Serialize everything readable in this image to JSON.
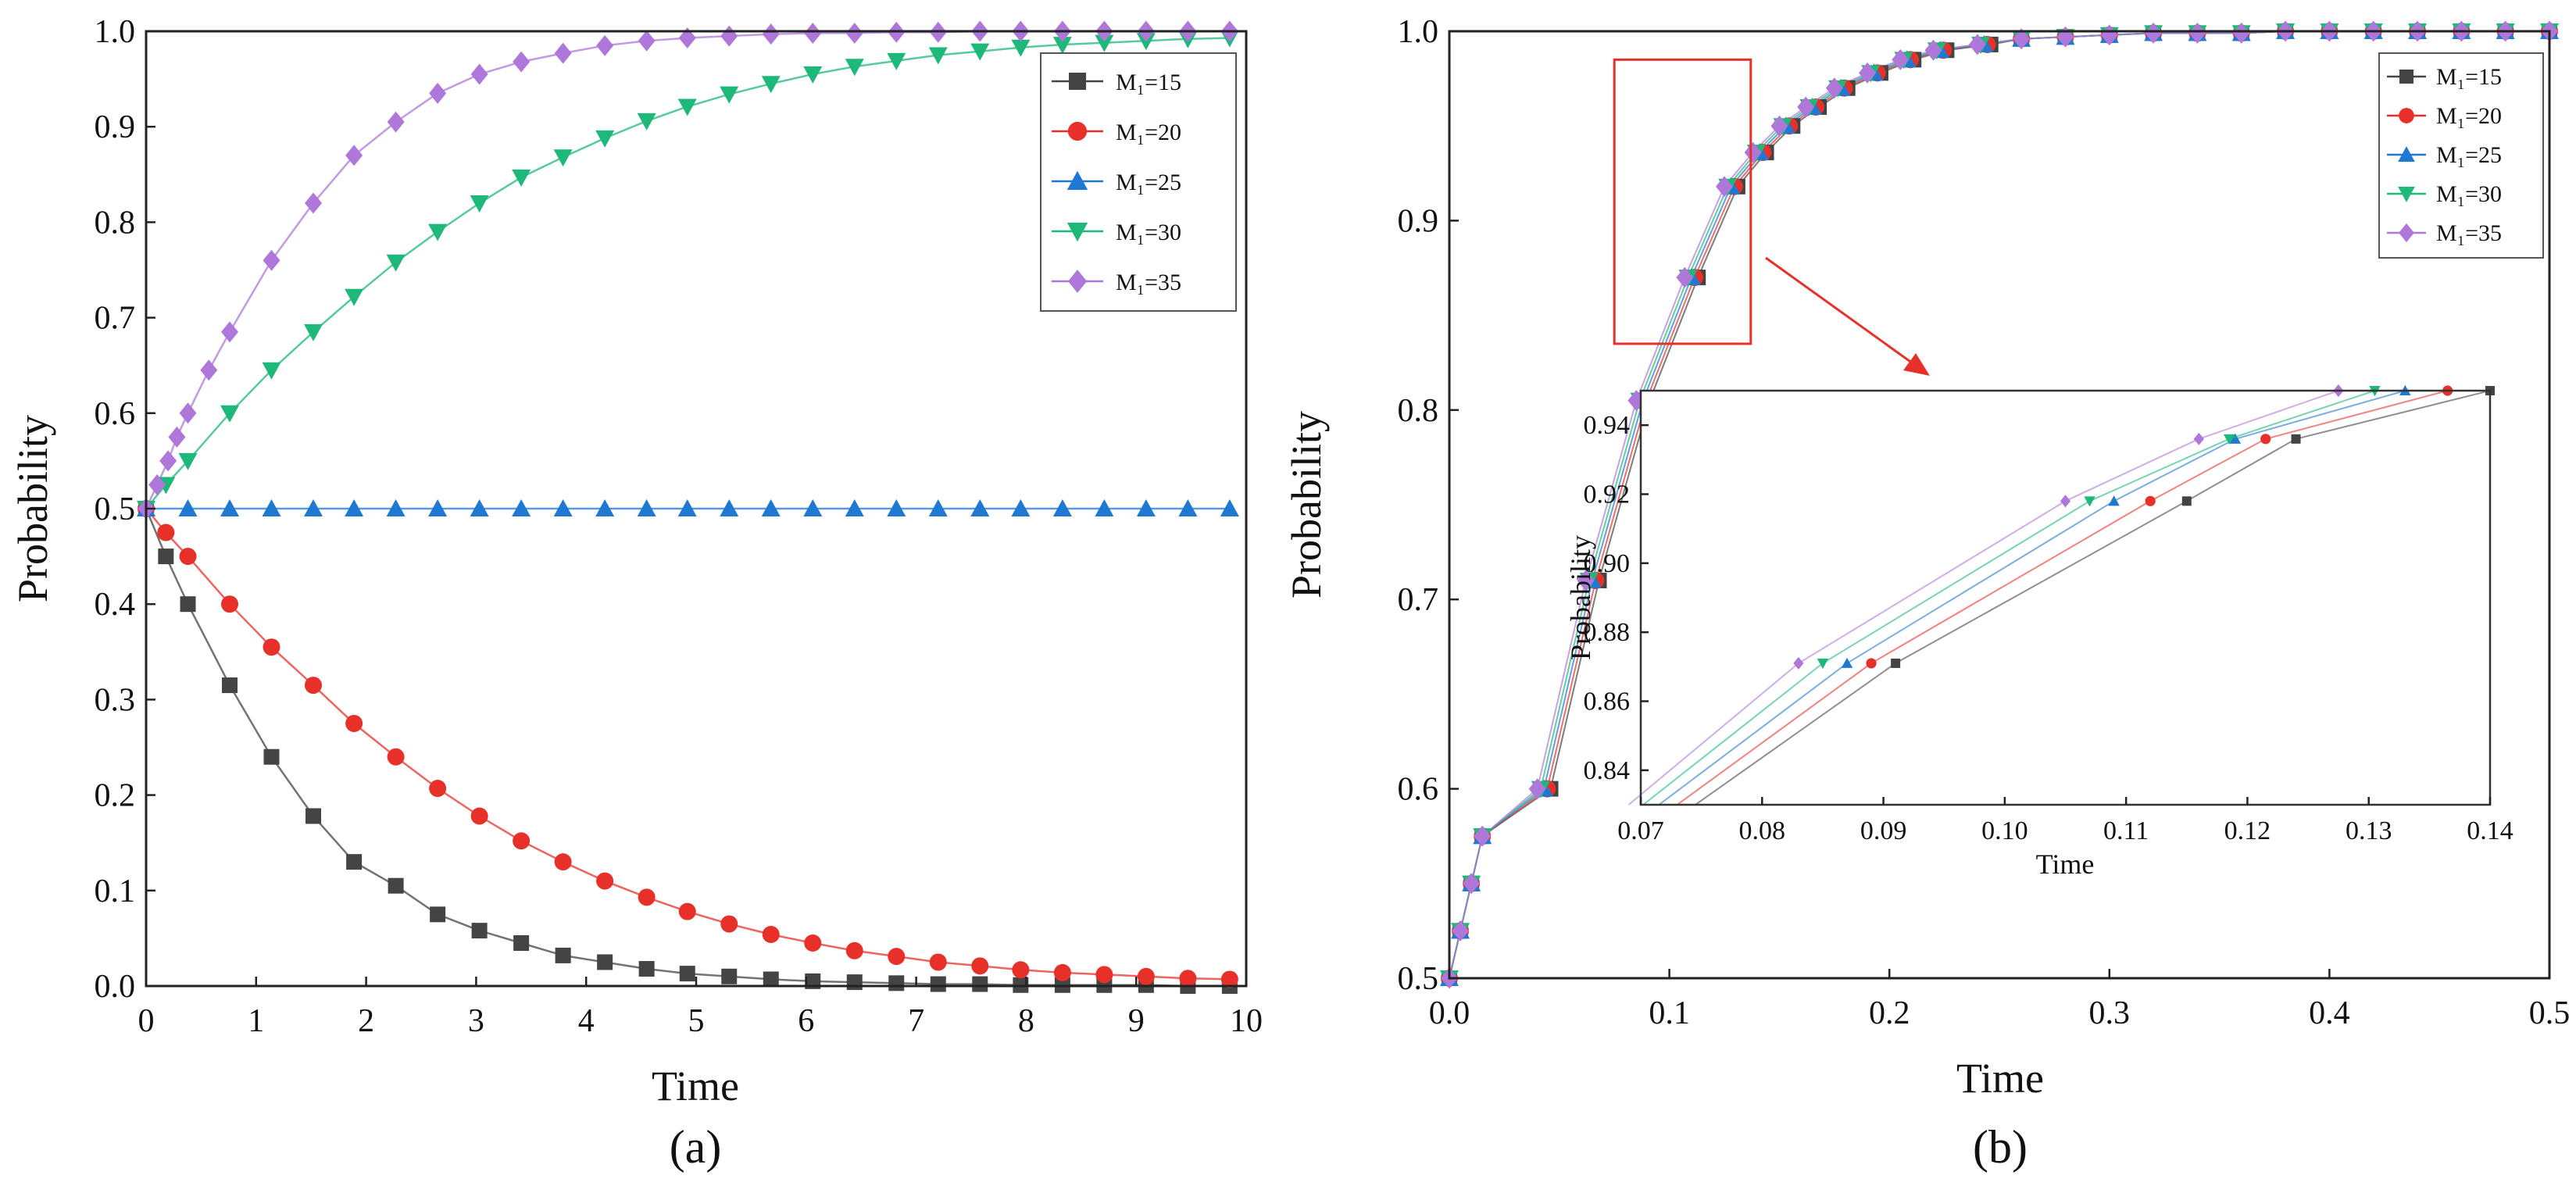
{
  "figure": {
    "colors": {
      "m15": "#444444",
      "m20": "#e8302a",
      "m25": "#1f78d1",
      "m30": "#1db87a",
      "m35": "#b077db",
      "callout": "#e8302a"
    },
    "legend": [
      "M₁=15",
      "M₁=20",
      "M₁=25",
      "M₁=30",
      "M₁=35"
    ]
  },
  "chart_data": [
    {
      "id": "a",
      "type": "line",
      "panel_label": "(a)",
      "xlabel": "Time",
      "ylabel": "Probability",
      "xlim": [
        0,
        10
      ],
      "ylim": [
        0,
        1
      ],
      "xticks": [
        "0",
        "1",
        "2",
        "3",
        "4",
        "5",
        "6",
        "7",
        "8",
        "9",
        "10"
      ],
      "yticks": [
        "0.0",
        "0.1",
        "0.2",
        "0.3",
        "0.4",
        "0.5",
        "0.6",
        "0.7",
        "0.8",
        "0.9",
        "1.0"
      ],
      "legend_position": "top-right",
      "series": [
        {
          "name": "M₁=15",
          "marker": "square",
          "color_key": "m15",
          "x": [
            0,
            0.18,
            0.38,
            0.76,
            1.14,
            1.52,
            1.89,
            2.27,
            2.65,
            3.03,
            3.41,
            3.79,
            4.17,
            4.55,
            4.92,
            5.3,
            5.68,
            6.06,
            6.44,
            6.82,
            7.2,
            7.58,
            7.95,
            8.33,
            8.71,
            9.09,
            9.47,
            9.85
          ],
          "y": [
            0.5,
            0.45,
            0.4,
            0.315,
            0.24,
            0.178,
            0.13,
            0.105,
            0.075,
            0.058,
            0.045,
            0.032,
            0.025,
            0.018,
            0.013,
            0.01,
            0.007,
            0.005,
            0.004,
            0.003,
            0.002,
            0.002,
            0.001,
            0.001,
            0.001,
            0.001,
            0.0,
            0.0
          ]
        },
        {
          "name": "M₁=20",
          "marker": "circle",
          "color_key": "m20",
          "x": [
            0,
            0.18,
            0.38,
            0.76,
            1.14,
            1.52,
            1.89,
            2.27,
            2.65,
            3.03,
            3.41,
            3.79,
            4.17,
            4.55,
            4.92,
            5.3,
            5.68,
            6.06,
            6.44,
            6.82,
            7.2,
            7.58,
            7.95,
            8.33,
            8.71,
            9.09,
            9.47,
            9.85
          ],
          "y": [
            0.5,
            0.475,
            0.45,
            0.4,
            0.355,
            0.315,
            0.275,
            0.24,
            0.207,
            0.178,
            0.152,
            0.13,
            0.11,
            0.093,
            0.078,
            0.065,
            0.054,
            0.045,
            0.037,
            0.031,
            0.025,
            0.021,
            0.017,
            0.014,
            0.012,
            0.01,
            0.008,
            0.007
          ]
        },
        {
          "name": "M₁=25",
          "marker": "triangle",
          "color_key": "m25",
          "x": [
            0,
            0.38,
            0.76,
            1.14,
            1.52,
            1.89,
            2.27,
            2.65,
            3.03,
            3.41,
            3.79,
            4.17,
            4.55,
            4.92,
            5.3,
            5.68,
            6.06,
            6.44,
            6.82,
            7.2,
            7.58,
            7.95,
            8.33,
            8.71,
            9.09,
            9.47,
            9.85
          ],
          "y": [
            0.5,
            0.5,
            0.5,
            0.5,
            0.5,
            0.5,
            0.5,
            0.5,
            0.5,
            0.5,
            0.5,
            0.5,
            0.5,
            0.5,
            0.5,
            0.5,
            0.5,
            0.5,
            0.5,
            0.5,
            0.5,
            0.5,
            0.5,
            0.5,
            0.5,
            0.5,
            0.5
          ]
        },
        {
          "name": "M₁=30",
          "marker": "triangle-down",
          "color_key": "m30",
          "x": [
            0,
            0.18,
            0.38,
            0.76,
            1.14,
            1.52,
            1.89,
            2.27,
            2.65,
            3.03,
            3.41,
            3.79,
            4.17,
            4.55,
            4.92,
            5.3,
            5.68,
            6.06,
            6.44,
            6.82,
            7.2,
            7.58,
            7.95,
            8.33,
            8.71,
            9.09,
            9.47,
            9.85
          ],
          "y": [
            0.5,
            0.525,
            0.55,
            0.6,
            0.645,
            0.685,
            0.722,
            0.758,
            0.79,
            0.82,
            0.847,
            0.868,
            0.888,
            0.906,
            0.921,
            0.934,
            0.945,
            0.955,
            0.963,
            0.969,
            0.975,
            0.979,
            0.983,
            0.986,
            0.988,
            0.99,
            0.992,
            0.993
          ]
        },
        {
          "name": "M₁=35",
          "marker": "diamond",
          "color_key": "m35",
          "x": [
            0,
            0.1,
            0.2,
            0.28,
            0.38,
            0.57,
            0.76,
            1.14,
            1.52,
            1.89,
            2.27,
            2.65,
            3.03,
            3.41,
            3.79,
            4.17,
            4.55,
            4.92,
            5.3,
            5.68,
            6.06,
            6.44,
            6.82,
            7.2,
            7.58,
            7.95,
            8.33,
            8.71,
            9.09,
            9.47,
            9.85
          ],
          "y": [
            0.5,
            0.525,
            0.55,
            0.575,
            0.6,
            0.645,
            0.685,
            0.76,
            0.82,
            0.87,
            0.905,
            0.935,
            0.955,
            0.968,
            0.977,
            0.985,
            0.99,
            0.993,
            0.995,
            0.997,
            0.998,
            0.998,
            0.999,
            0.999,
            1.0,
            1.0,
            1.0,
            1.0,
            1.0,
            1.0,
            1.0
          ]
        }
      ]
    },
    {
      "id": "b",
      "type": "line",
      "panel_label": "(b)",
      "xlabel": "Time",
      "ylabel": "Probability",
      "xlim": [
        0,
        0.5
      ],
      "ylim": [
        0.5,
        1.0
      ],
      "xticks": [
        "0.0",
        "0.1",
        "0.2",
        "0.3",
        "0.4",
        "0.5"
      ],
      "yticks": [
        "0.5",
        "0.6",
        "0.7",
        "0.8",
        "0.9",
        "1.0"
      ],
      "legend_position": "top-right",
      "zoom_box": {
        "x": [
          0.075,
          0.137
        ],
        "y": [
          0.835,
          0.985
        ]
      },
      "series_offsets": [
        0.006,
        0.0045,
        0.003,
        0.0015,
        0
      ],
      "base_curve": {
        "x": [
          0.0,
          0.005,
          0.01,
          0.015,
          0.04,
          0.062,
          0.085,
          0.107,
          0.125,
          0.138,
          0.15,
          0.162,
          0.175,
          0.19,
          0.205,
          0.22,
          0.24,
          0.26,
          0.28,
          0.3,
          0.32,
          0.34,
          0.36,
          0.38,
          0.4,
          0.42,
          0.44,
          0.46,
          0.48,
          0.5
        ],
        "y": [
          0.5,
          0.525,
          0.55,
          0.575,
          0.6,
          0.71,
          0.805,
          0.87,
          0.918,
          0.936,
          0.95,
          0.96,
          0.97,
          0.978,
          0.985,
          0.99,
          0.993,
          0.996,
          0.997,
          0.998,
          0.999,
          0.999,
          0.999,
          1.0,
          1.0,
          1.0,
          1.0,
          1.0,
          1.0,
          1.0
        ]
      },
      "inset": {
        "xlabel": "Time",
        "ylabel": "Probability",
        "xlim": [
          0.07,
          0.14
        ],
        "ylim": [
          0.83,
          0.95
        ],
        "xticks": [
          "0.07",
          "0.08",
          "0.09",
          "0.10",
          "0.11",
          "0.12",
          "0.13",
          "0.14"
        ],
        "yticks": [
          "0.84",
          "0.86",
          "0.88",
          "0.90",
          "0.92",
          "0.94"
        ],
        "series": [
          {
            "name": "M₁=15",
            "color_key": "m15",
            "x": [
              0.0745,
              0.091,
              0.115,
              0.124,
              0.14
            ],
            "y": [
              0.83,
              0.871,
              0.918,
              0.936,
              0.95
            ]
          },
          {
            "name": "M₁=20",
            "color_key": "m20",
            "x": [
              0.073,
              0.089,
              0.112,
              0.1215,
              0.1365
            ],
            "y": [
              0.83,
              0.871,
              0.918,
              0.936,
              0.95
            ]
          },
          {
            "name": "M₁=25",
            "color_key": "m25",
            "x": [
              0.0715,
              0.087,
              0.109,
              0.119,
              0.133
            ],
            "y": [
              0.83,
              0.871,
              0.918,
              0.936,
              0.95
            ]
          },
          {
            "name": "M₁=30",
            "color_key": "m30",
            "x": [
              0.0702,
              0.085,
              0.107,
              0.1185,
              0.1305
            ],
            "y": [
              0.83,
              0.871,
              0.918,
              0.936,
              0.95
            ]
          },
          {
            "name": "M₁=35",
            "color_key": "m35",
            "x": [
              0.069,
              0.083,
              0.105,
              0.116,
              0.1275
            ],
            "y": [
              0.83,
              0.871,
              0.918,
              0.936,
              0.95
            ]
          }
        ]
      }
    }
  ]
}
